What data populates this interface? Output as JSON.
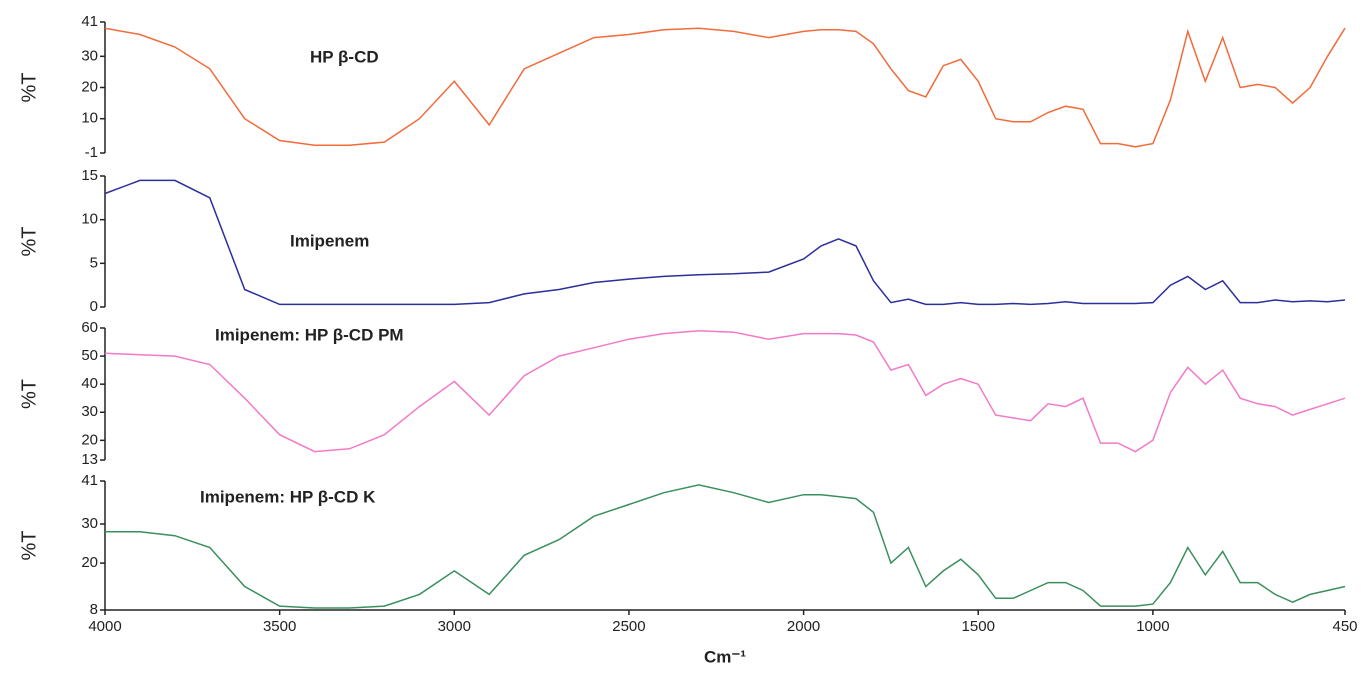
{
  "chart_data": [
    {
      "type": "line",
      "ylabel": "%T",
      "annotation": "HP β-CD",
      "color": "#f26b3a",
      "xlim": [
        4000,
        450
      ],
      "ylim": [
        -1,
        41
      ],
      "yticks": [
        -1,
        10,
        20,
        30,
        41
      ],
      "x": [
        4000,
        3900,
        3800,
        3700,
        3600,
        3500,
        3400,
        3300,
        3200,
        3100,
        3000,
        2900,
        2800,
        2700,
        2600,
        2500,
        2400,
        2300,
        2200,
        2100,
        2000,
        1950,
        1900,
        1850,
        1800,
        1750,
        1700,
        1650,
        1600,
        1550,
        1500,
        1450,
        1400,
        1350,
        1300,
        1250,
        1200,
        1150,
        1100,
        1050,
        1000,
        950,
        900,
        850,
        800,
        750,
        700,
        650,
        600,
        550,
        500,
        450
      ],
      "values": [
        39,
        37,
        33,
        26,
        10,
        3,
        1.5,
        1.5,
        2.5,
        10,
        22,
        8,
        26,
        31,
        36,
        37,
        38.5,
        39,
        38,
        36,
        38,
        38.5,
        38.5,
        38,
        34,
        26,
        19,
        17,
        27,
        29,
        22,
        10,
        9,
        9,
        12,
        14,
        13,
        2,
        2,
        1,
        2,
        16,
        38,
        22,
        36,
        20,
        21,
        20,
        15,
        20,
        30,
        39
      ]
    },
    {
      "type": "line",
      "ylabel": "%T",
      "annotation": "Imipenem",
      "color": "#2b2f9c",
      "xlim": [
        4000,
        450
      ],
      "ylim": [
        0,
        15
      ],
      "yticks": [
        0,
        5,
        10,
        15
      ],
      "x": [
        4000,
        3900,
        3800,
        3700,
        3600,
        3500,
        3400,
        3300,
        3200,
        3100,
        3000,
        2900,
        2800,
        2700,
        2600,
        2500,
        2400,
        2300,
        2200,
        2100,
        2000,
        1950,
        1900,
        1850,
        1800,
        1750,
        1700,
        1650,
        1600,
        1550,
        1500,
        1450,
        1400,
        1350,
        1300,
        1250,
        1200,
        1150,
        1100,
        1050,
        1000,
        950,
        900,
        850,
        800,
        750,
        700,
        650,
        600,
        550,
        500,
        450
      ],
      "values": [
        13,
        14.5,
        14.5,
        12.5,
        2,
        0.3,
        0.3,
        0.3,
        0.3,
        0.3,
        0.3,
        0.5,
        1.5,
        2,
        2.8,
        3.2,
        3.5,
        3.7,
        3.8,
        4,
        5.5,
        7,
        7.8,
        7,
        3,
        0.5,
        0.9,
        0.3,
        0.3,
        0.5,
        0.3,
        0.3,
        0.4,
        0.3,
        0.4,
        0.6,
        0.4,
        0.4,
        0.4,
        0.4,
        0.5,
        2.5,
        3.5,
        2,
        3,
        0.5,
        0.5,
        0.8,
        0.6,
        0.7,
        0.6,
        0.8
      ]
    },
    {
      "type": "line",
      "ylabel": "%T",
      "annotation": "Imipenem: HP β-CD PM",
      "color": "#f27ac8",
      "xlim": [
        4000,
        450
      ],
      "ylim": [
        13,
        60
      ],
      "yticks": [
        13,
        20,
        30,
        40,
        50,
        60
      ],
      "x": [
        4000,
        3900,
        3800,
        3700,
        3600,
        3500,
        3400,
        3300,
        3200,
        3100,
        3000,
        2900,
        2800,
        2700,
        2600,
        2500,
        2400,
        2300,
        2200,
        2100,
        2000,
        1950,
        1900,
        1850,
        1800,
        1750,
        1700,
        1650,
        1600,
        1550,
        1500,
        1450,
        1400,
        1350,
        1300,
        1250,
        1200,
        1150,
        1100,
        1050,
        1000,
        950,
        900,
        850,
        800,
        750,
        700,
        650,
        600,
        550,
        500,
        450
      ],
      "values": [
        51,
        50.5,
        50,
        47,
        35,
        22,
        16,
        17,
        22,
        32,
        41,
        29,
        43,
        50,
        53,
        56,
        58,
        59,
        58.5,
        56,
        58,
        58,
        58,
        57.5,
        55,
        45,
        47,
        36,
        40,
        42,
        40,
        29,
        28,
        27,
        33,
        32,
        35,
        19,
        19,
        16,
        20,
        37,
        46,
        40,
        45,
        35,
        33,
        32,
        29,
        31,
        33,
        35
      ]
    },
    {
      "type": "line",
      "ylabel": "%T",
      "annotation": "Imipenem: HP β-CD K",
      "color": "#3a8f5e",
      "xlim": [
        4000,
        450
      ],
      "ylim": [
        8,
        41
      ],
      "yticks": [
        8,
        20,
        30,
        41
      ],
      "xticks": [
        4000,
        3500,
        3000,
        2500,
        2000,
        1500,
        1000,
        450
      ],
      "xlabel": "Cm⁻¹",
      "x": [
        4000,
        3900,
        3800,
        3700,
        3600,
        3500,
        3400,
        3300,
        3200,
        3100,
        3000,
        2900,
        2800,
        2700,
        2600,
        2500,
        2400,
        2300,
        2200,
        2100,
        2000,
        1950,
        1900,
        1850,
        1800,
        1750,
        1700,
        1650,
        1600,
        1550,
        1500,
        1450,
        1400,
        1350,
        1300,
        1250,
        1200,
        1150,
        1100,
        1050,
        1000,
        950,
        900,
        850,
        800,
        750,
        700,
        650,
        600,
        550,
        500,
        450
      ],
      "values": [
        28,
        28,
        27,
        24,
        14,
        9,
        8.5,
        8.5,
        9,
        12,
        18,
        12,
        22,
        26,
        32,
        35,
        38,
        40,
        38,
        35.5,
        37.5,
        37.5,
        37,
        36.5,
        33,
        20,
        24,
        14,
        18,
        21,
        17,
        11,
        11,
        13,
        15,
        15,
        13,
        9,
        9,
        9,
        9.5,
        15,
        24,
        17,
        23,
        15,
        15,
        12,
        10,
        12,
        13,
        14
      ]
    }
  ]
}
